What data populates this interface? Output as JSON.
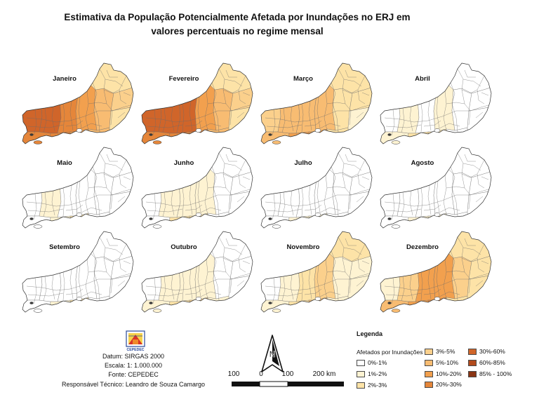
{
  "title": {
    "line1": "Estimativa da População Potencialmente Afetada por Inundações no ERJ em",
    "line2": "valores percentuais no regime mensal"
  },
  "months": [
    {
      "name": "Janeiro",
      "classes": [
        7,
        6,
        7,
        6,
        6,
        5,
        5,
        4,
        4,
        2,
        3,
        2
      ]
    },
    {
      "name": "Fevereiro",
      "classes": [
        7,
        6,
        7,
        6,
        7,
        6,
        5,
        4,
        4,
        2,
        3,
        2
      ]
    },
    {
      "name": "Março",
      "classes": [
        3,
        4,
        4,
        5,
        4,
        5,
        4,
        2,
        2,
        1,
        2,
        2
      ]
    },
    {
      "name": "Abril",
      "classes": [
        0,
        1,
        1,
        2,
        0,
        2,
        1,
        0,
        0,
        0,
        0,
        0
      ]
    },
    {
      "name": "Maio",
      "classes": [
        0,
        0,
        1,
        1,
        0,
        2,
        0,
        0,
        0,
        0,
        0,
        0
      ]
    },
    {
      "name": "Junho",
      "classes": [
        0,
        0,
        1,
        2,
        1,
        2,
        1,
        0,
        0,
        0,
        0,
        0
      ]
    },
    {
      "name": "Julho",
      "classes": [
        0,
        0,
        0,
        1,
        0,
        1,
        0,
        0,
        0,
        0,
        0,
        0
      ]
    },
    {
      "name": "Agosto",
      "classes": [
        0,
        0,
        0,
        1,
        0,
        1,
        0,
        0,
        0,
        0,
        0,
        0
      ]
    },
    {
      "name": "Setembro",
      "classes": [
        0,
        0,
        0,
        1,
        0,
        2,
        0,
        0,
        0,
        0,
        0,
        0
      ]
    },
    {
      "name": "Outubro",
      "classes": [
        0,
        1,
        1,
        2,
        1,
        3,
        1,
        1,
        0,
        0,
        0,
        0
      ]
    },
    {
      "name": "Novembro",
      "classes": [
        0,
        1,
        1,
        2,
        2,
        4,
        3,
        1,
        1,
        1,
        1,
        2
      ]
    },
    {
      "name": "Dezembro",
      "classes": [
        1,
        4,
        3,
        5,
        5,
        6,
        5,
        2,
        3,
        2,
        2,
        2
      ]
    }
  ],
  "legend": {
    "title": "Legenda",
    "subtitle": "Afetados por Inundações",
    "classes": [
      {
        "label": "0%-1%",
        "color": "#ffffff"
      },
      {
        "label": "1%-2%",
        "color": "#fef3d2"
      },
      {
        "label": "2%-3%",
        "color": "#fde3a7"
      },
      {
        "label": "3%-5%",
        "color": "#fbd08c"
      },
      {
        "label": "5%-10%",
        "color": "#f8bc72"
      },
      {
        "label": "10%-20%",
        "color": "#f2a04e"
      },
      {
        "label": "20%-30%",
        "color": "#e5863a"
      },
      {
        "label": "30%-60%",
        "color": "#d0652a"
      },
      {
        "label": "60%-85%",
        "color": "#b24a1c"
      },
      {
        "label": "85% - 100%",
        "color": "#8a3513"
      }
    ]
  },
  "credits": {
    "datum": "Datum: SIRGAS 2000",
    "scale": "Escala: 1: 1.000.000",
    "source": "Fonte: CEPEDEC",
    "responsible": "Responsável Técnico: Leandro de Souza Camargo"
  },
  "logo": {
    "text": "CEPEDEC"
  },
  "north_arrow": {
    "label": "N",
    "icon": "north-arrow-icon"
  },
  "scale_bar": {
    "labels": [
      "100",
      "0",
      "100",
      "200 km"
    ]
  }
}
